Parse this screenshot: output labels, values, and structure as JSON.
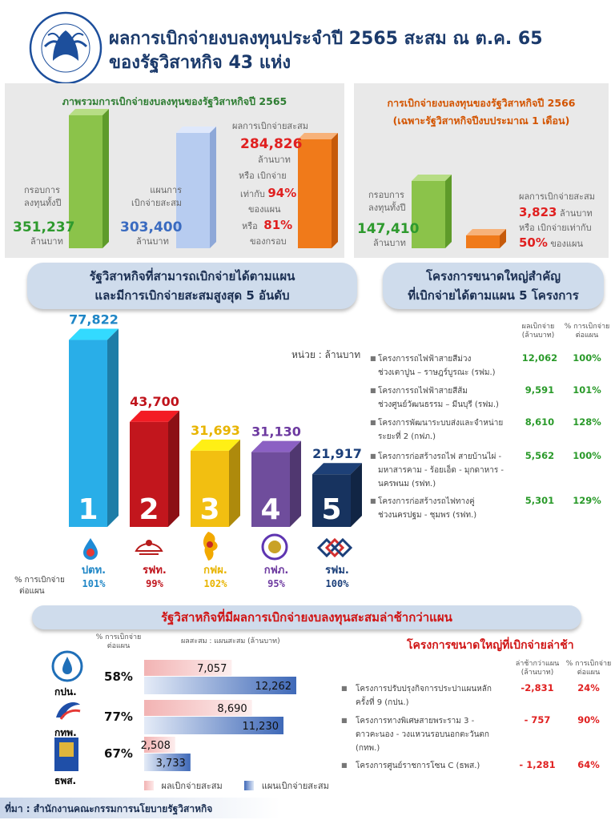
{
  "header": {
    "title_line1": "ผลการเบิกจ่ายงบลงทุนประจำปี 2565 สะสม ณ ต.ค. 65",
    "title_line2": "ของรัฐวิสาหกิจ 43 แห่ง",
    "logo_caption": "สำนักงานคณะกรรมการนโยบายรัฐวิสาหกิจ"
  },
  "panel_2565": {
    "title": "ภาพรวมการเบิกจ่ายงบลงทุนของรัฐวิสาหกิจปี 2565",
    "frame_label1": "กรอบการ",
    "frame_label2": "ลงทุนทั้งปี",
    "frame_value": "351,237",
    "frame_unit": "ล้านบาท",
    "plan_label1": "แผนการ",
    "plan_label2": "เบิกจ่ายสะสม",
    "plan_value": "303,400",
    "plan_unit": "ล้านบาท",
    "result_label": "ผลการเบิกจ่ายสะสม",
    "result_value": "284,826",
    "result_unit": "ล้านบาท",
    "or_pay": "หรือ เบิกจ่าย",
    "equal_to": "เท่ากับ",
    "plan_pct": "94%",
    "of_plan": "ของแผน",
    "or_word": "หรือ",
    "frame_pct": "81%",
    "of_frame": "ของกรอบ"
  },
  "panel_2566": {
    "title_line1": "การเบิกจ่ายงบลงทุนของรัฐวิสาหกิจปี 2566",
    "title_line2": "(เฉพาะรัฐวิสาหกิจปีงบประมาณ 1 เดือน)",
    "frame_label1": "กรอบการ",
    "frame_label2": "ลงทุนทั้งปี",
    "frame_value": "147,410",
    "frame_unit": "ล้านบาท",
    "result_label": "ผลการเบิกจ่ายสะสม",
    "result_value": "3,823",
    "result_unit": "ล้านบาท",
    "equal_text": "หรือ เบิกจ่ายเท่ากับ",
    "pct": "50%",
    "of_plan": "ของแผน"
  },
  "pill_top5": {
    "line1": "รัฐวิสาหกิจที่สามารถเบิกจ่ายได้ตามแผน",
    "line2": "และมีการเบิกจ่ายสะสมสูงสุด 5 อันดับ"
  },
  "pill_projects": {
    "line1": "โครงการขนาดใหญ่สำคัญ",
    "line2": "ที่เบิกจ่ายได้ตามแผน 5 โครงการ"
  },
  "unit_note": "หน่วย : ล้านบาท",
  "top5_pct_label1": "% การเบิกจ่าย",
  "top5_pct_label2": "ต่อแผน",
  "chart_data": [
    {
      "type": "bar",
      "categories": [
        "ปตท.",
        "รฟท.",
        "กฟผ.",
        "กฟภ.",
        "รฟม."
      ],
      "values": [
        77822,
        43700,
        31693,
        31130,
        21917
      ],
      "value_labels": [
        "77,822",
        "43,700",
        "31,693",
        "31,130",
        "21,917"
      ],
      "ranks": [
        "1",
        "2",
        "3",
        "4",
        "5"
      ],
      "pct_of_plan": [
        "101%",
        "99%",
        "102%",
        "95%",
        "100%"
      ],
      "colors": [
        "#29aee8",
        "#c2161d",
        "#f2bf11",
        "#6f4d9c",
        "#17335f"
      ],
      "label_colors": [
        "#1f86c6",
        "#c0141c",
        "#e8b400",
        "#6d3aa0",
        "#1b3f7a"
      ],
      "ylabel": "หน่วย : ล้านบาท"
    },
    {
      "type": "bar",
      "categories": [
        "กปน.",
        "กทพ.",
        "ธพส."
      ],
      "series": [
        {
          "name": "ผลเบิกจ่ายสะสม",
          "values": [
            7057,
            8690,
            2508
          ],
          "labels": [
            "7,057",
            "8,690",
            "2,508"
          ]
        },
        {
          "name": "แผนเบิกจ่ายสะสม",
          "values": [
            12262,
            11230,
            3733
          ],
          "labels": [
            "12,262",
            "11,230",
            "3,733"
          ]
        }
      ],
      "pct_of_plan": [
        "58%",
        "77%",
        "67%"
      ],
      "title": "รัฐวิสาหกิจที่มีผลการเบิกจ่ายงบลงทุนสะสมล่าช้ากว่าแผน",
      "header_pct_line1": "% การเบิกจ่าย",
      "header_pct_line2": "ต่อแผน",
      "header_value": "ผลสะสม : แผนสะสม (ล้านบาท)"
    }
  ],
  "projects_good": {
    "col_value1": "ผลเบิกจ่าย",
    "col_value2": "(ล้านบาท)",
    "col_pct1": "% การเบิกจ่าย",
    "col_pct2": "ต่อแผน",
    "rows": [
      {
        "name1": "โครงการรถไฟฟ้าสายสีม่วง",
        "name2": "ช่วงเตาปูน – ราษฎร์บูรณะ (รฟม.)",
        "value": "12,062",
        "pct": "100%"
      },
      {
        "name1": "โครงการรถไฟฟ้าสายสีส้ม",
        "name2": "ช่วงศูนย์วัฒนธรรม – มีนบุรี (รฟม.)",
        "value": "9,591",
        "pct": "101%"
      },
      {
        "name1": "โครงการพัฒนาระบบส่งและจำหน่าย",
        "name2": "ระยะที่ 2 (กฟภ.)",
        "value": "8,610",
        "pct": "128%"
      },
      {
        "name1": "โครงการก่อสร้างรถไฟ สายบ้านไผ่ -",
        "name2": "มหาสารคาม - ร้อยเอ็ด - มุกดาหาร -",
        "name3": "นครพนม (รฟท.)",
        "value": "5,562",
        "pct": "100%"
      },
      {
        "name1": "โครงการก่อสร้างรถไฟทางคู่",
        "name2": "ช่วงนครปฐม - ชุมพร (รฟท.)",
        "value": "5,301",
        "pct": "129%"
      }
    ]
  },
  "projects_late": {
    "title": "โครงการขนาดใหญ่ที่เบิกจ่ายล่าช้า",
    "col_value1": "ล่าช้ากว่าแผน",
    "col_value2": "(ล้านบาท)",
    "col_pct1": "% การเบิกจ่าย",
    "col_pct2": "ต่อแผน",
    "rows": [
      {
        "name1": "โครงการปรับปรุงกิจการประปาแผนหลัก",
        "name2": "ครั้งที่ 9 (กปน.)",
        "value": "-2,831",
        "pct": "24%"
      },
      {
        "name1": "โครงการทางพิเศษสายพระราม 3 -",
        "name2": "ดาวคะนอง - วงแหวนรอบนอกตะวันตก",
        "name3": "(กทพ.)",
        "value": "- 757",
        "pct": "90%"
      },
      {
        "name1": "โครงการศูนย์ราชการโซน C (ธพส.)",
        "value": "- 1,281",
        "pct": "64%"
      }
    ]
  },
  "legend": {
    "result": "ผลเบิกจ่ายสะสม",
    "plan": "แผนเบิกจ่ายสะสม"
  },
  "footer": "ที่มา : สำนักงานคณะกรรมการนโยบายรัฐวิสาหกิจ",
  "colors": {
    "navy": "#1b3a6b",
    "green_bar": "#8bc34a",
    "orange_bar": "#f07a1a",
    "blue_bar": "#b7ccf0",
    "red_text": "#e02020",
    "green_text": "#2a9a2a"
  }
}
